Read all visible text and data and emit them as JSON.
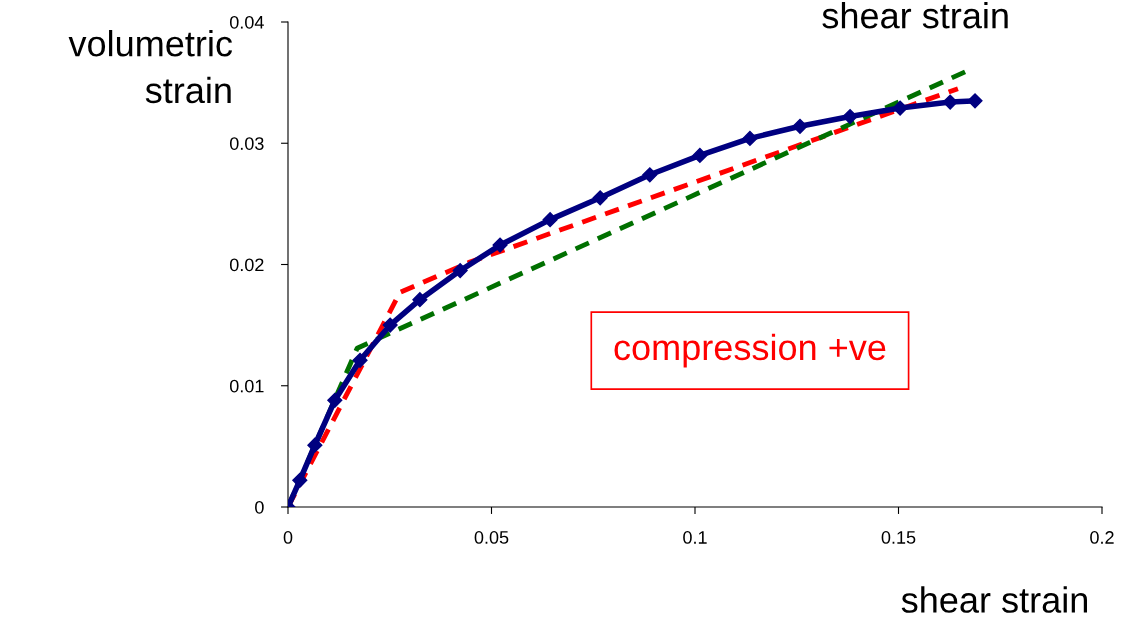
{
  "chart_data": {
    "type": "line",
    "title": "shear strain",
    "xlabel": "shear strain",
    "ylabel": "volumetric\nstrain",
    "annotations": [
      "compression +ve"
    ],
    "xlim": [
      0,
      0.2
    ],
    "xticks": [
      0,
      0.05,
      0.1,
      0.15,
      0.2
    ],
    "ylim": [
      0,
      0.04
    ],
    "yticks": [
      0,
      0.01,
      0.02,
      0.03,
      0.04
    ],
    "grid": false,
    "legend": false,
    "series": [
      {
        "color": "#000080",
        "marker": "diamond",
        "line_style": "solid",
        "x": [
          0,
          0.0029,
          0.0066,
          0.0115,
          0.0177,
          0.0251,
          0.0324,
          0.0423,
          0.0521,
          0.0644,
          0.0767,
          0.0889,
          0.1012,
          0.1135,
          0.1258,
          0.1381,
          0.1504,
          0.1627,
          0.1688
        ],
        "values": [
          0,
          0.0022,
          0.0051,
          0.0088,
          0.0121,
          0.015,
          0.0171,
          0.0195,
          0.0216,
          0.0237,
          0.0255,
          0.0274,
          0.029,
          0.0304,
          0.0314,
          0.0322,
          0.0329,
          0.0334,
          0.0335
        ]
      },
      {
        "color": "#ff0000",
        "marker": "none",
        "line_style": "dashed",
        "x": [
          0,
          0.0275,
          0.0447,
          0.1646
        ],
        "values": [
          0,
          0.0177,
          0.0202,
          0.0345
        ]
      },
      {
        "color": "#007000",
        "marker": "none",
        "line_style": "dashed",
        "x": [
          0,
          0.017,
          0.1671
        ],
        "values": [
          0,
          0.0131,
          0.036
        ]
      }
    ]
  }
}
